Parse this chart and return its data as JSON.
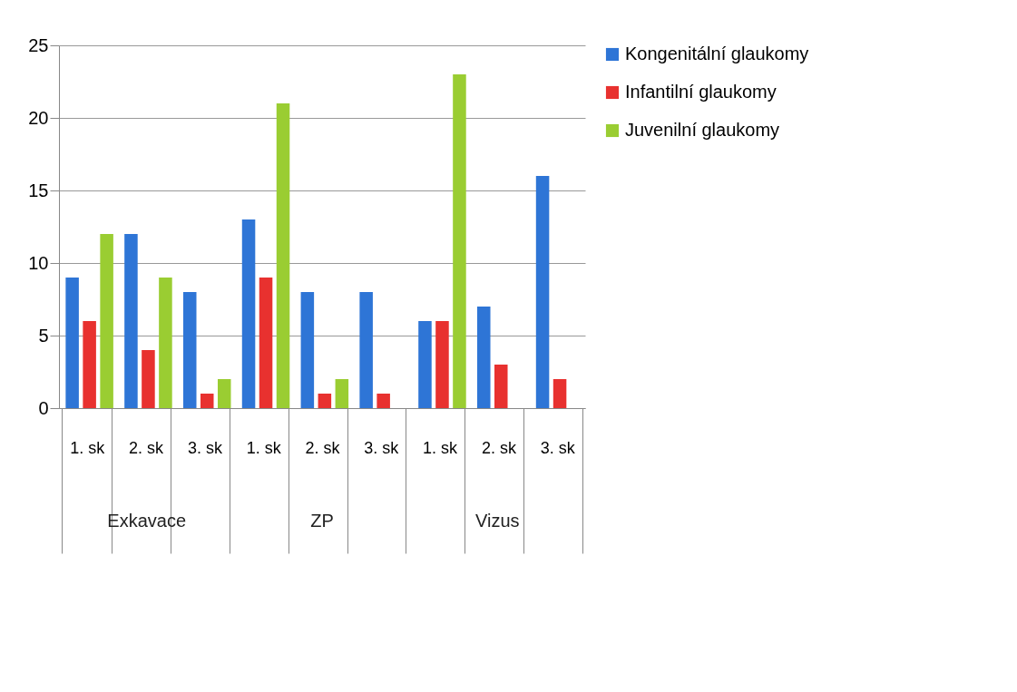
{
  "chart_data": {
    "type": "bar",
    "categories": [
      "1. sk",
      "2. sk",
      "3. sk",
      "1. sk",
      "2. sk",
      "3. sk",
      "1. sk",
      "2. sk",
      "3. sk"
    ],
    "annotations": [
      "Exkavace",
      "ZP",
      "Vizus"
    ],
    "series": [
      {
        "name": "Kongenitální glaukomy",
        "color": "#2e75d6",
        "values": [
          9,
          12,
          8,
          13,
          8,
          8,
          6,
          7,
          16
        ]
      },
      {
        "name": "Infantilní glaukomy",
        "color": "#e8312f",
        "values": [
          6,
          4,
          1,
          9,
          1,
          1,
          6,
          3,
          2
        ]
      },
      {
        "name": "Juvenilní glaukomy",
        "color": "#9acd32",
        "values": [
          12,
          9,
          2,
          21,
          2,
          0,
          23,
          0,
          0
        ]
      }
    ],
    "ylim": [
      0,
      25
    ],
    "yticks": [
      0,
      5,
      10,
      15,
      20,
      25
    ],
    "grid": "y",
    "legend": "right"
  }
}
